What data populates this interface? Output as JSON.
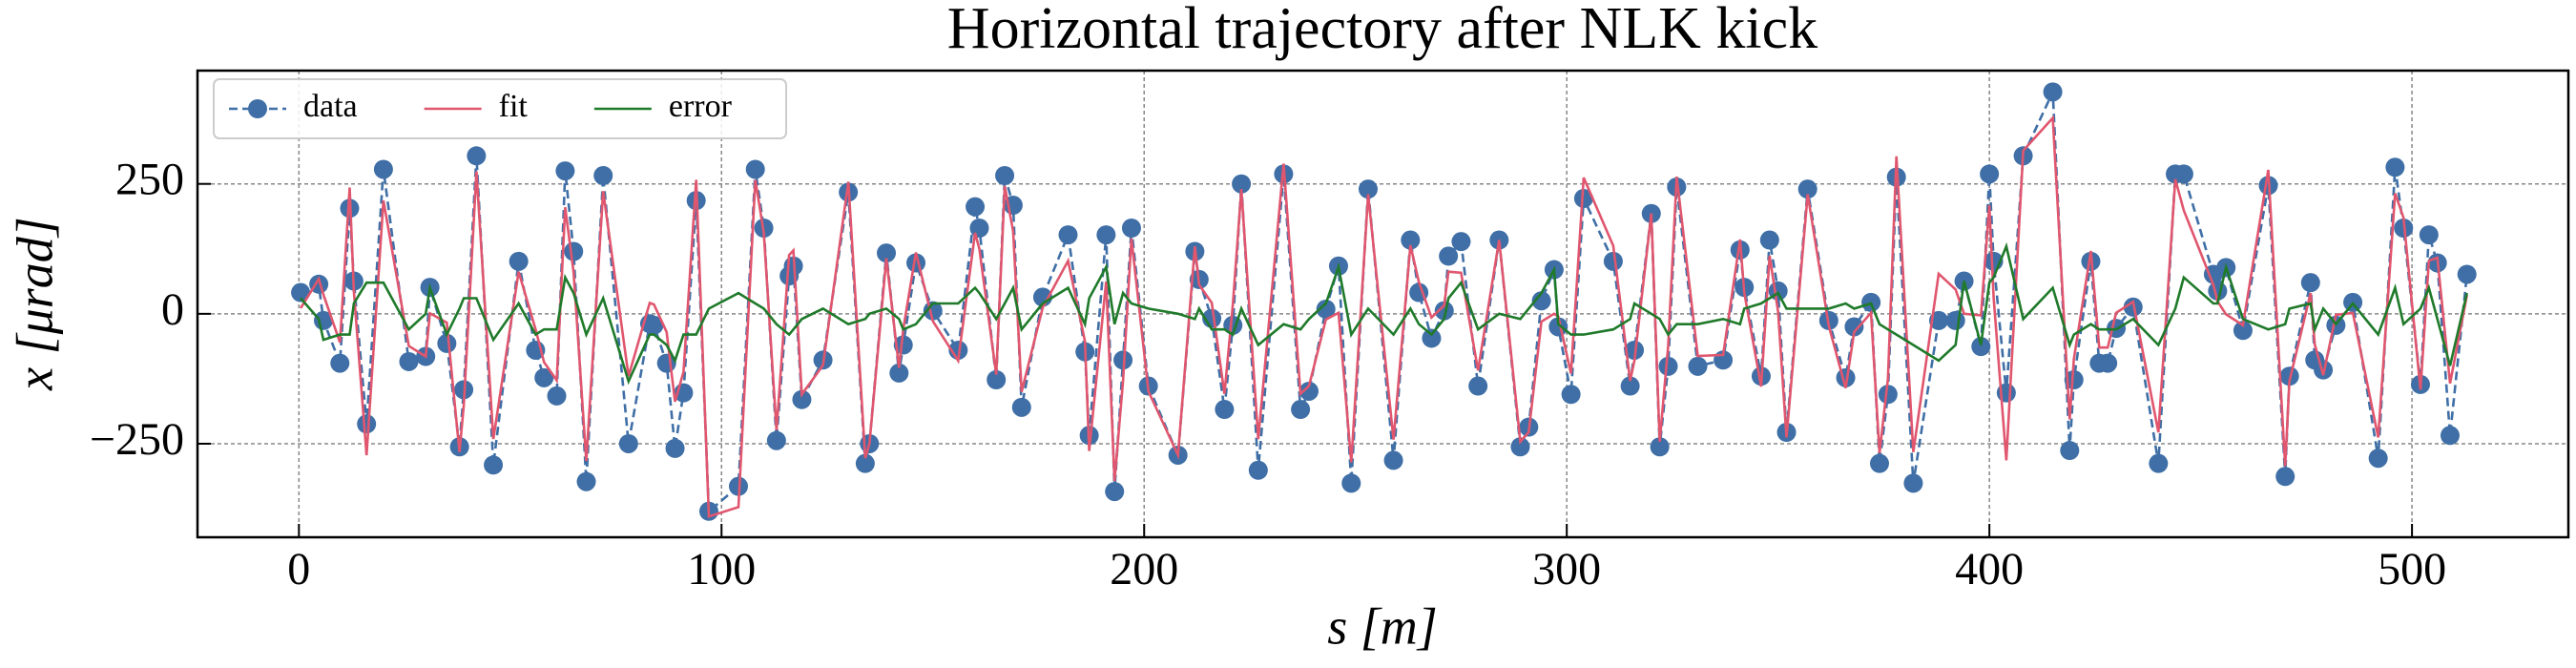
{
  "chart_data": {
    "type": "line",
    "title": "Horizontal trajectory after NLK kick",
    "xlabel": "s [m]",
    "ylabel": "x [μrad]",
    "xlim": [
      -24,
      537
    ],
    "ylim": [
      -430,
      468
    ],
    "xticks": [
      0,
      100,
      200,
      300,
      400,
      500
    ],
    "yticks": [
      {
        "value": -250,
        "label": "−250"
      },
      0,
      250
    ],
    "grid": true,
    "legend": "upper left",
    "x": [
      0.4,
      4.7,
      5.8,
      9.7,
      12,
      13,
      16,
      20,
      26,
      30,
      31,
      35,
      38,
      39,
      42,
      46,
      52,
      56,
      58,
      61,
      63,
      65,
      68,
      72,
      78,
      83,
      84,
      87,
      89,
      91,
      94,
      97,
      104,
      108,
      110,
      113,
      116,
      117,
      119,
      124,
      130,
      134,
      135,
      139,
      142,
      143,
      146,
      150,
      156,
      160,
      161,
      165,
      167,
      169,
      171,
      176,
      182,
      186,
      187,
      191,
      193,
      195,
      197,
      201,
      208,
      212,
      213,
      216,
      219,
      221,
      223,
      227,
      233,
      237,
      239,
      243,
      246,
      249,
      253,
      259,
      263,
      265,
      268,
      271,
      272,
      275,
      279,
      284,
      289,
      291,
      294,
      297,
      298,
      301,
      304,
      311,
      315,
      316,
      320,
      322,
      324,
      326,
      331,
      337,
      341,
      342,
      346,
      348,
      350,
      352,
      357,
      362,
      366,
      368,
      372,
      374,
      376,
      378,
      382,
      388,
      392,
      394,
      398,
      400,
      401,
      404,
      408,
      415,
      419,
      420,
      424,
      426,
      428,
      430,
      434,
      440,
      444,
      446,
      453,
      454,
      456,
      460,
      466,
      470,
      471,
      476,
      477,
      479,
      482,
      486,
      492,
      496,
      498,
      502,
      504,
      506,
      509,
      513
    ],
    "series": [
      {
        "name": "data",
        "color": "#3f6fa6",
        "linestyle": "dashed",
        "marker": true,
        "values": [
          41,
          57,
          -13,
          -95,
          203,
          63,
          -212,
          278,
          -92,
          -82,
          51,
          -57,
          -256,
          -146,
          304,
          -291,
          101,
          -70,
          -123,
          -158,
          275,
          120,
          -323,
          266,
          -250,
          -19,
          -22,
          -95,
          -259,
          -152,
          218,
          -380,
          -332,
          278,
          165,
          -244,
          73,
          92,
          -165,
          -89,
          234,
          -288,
          -250,
          117,
          -114,
          -60,
          98,
          6,
          -70,
          206,
          165,
          -127,
          266,
          209,
          -180,
          32,
          152,
          -73,
          -234,
          152,
          -342,
          -89,
          165,
          -139,
          -272,
          120,
          66,
          -9,
          -184,
          -22,
          250,
          -301,
          269,
          -184,
          -149,
          9,
          92,
          -326,
          240,
          -282,
          142,
          41,
          -47,
          6,
          111,
          139,
          -139,
          142,
          -256,
          -218,
          25,
          85,
          -25,
          -155,
          222,
          101,
          -139,
          -70,
          193,
          -256,
          -101,
          244,
          -101,
          -89,
          123,
          51,
          -120,
          142,
          44,
          -228,
          240,
          -13,
          -123,
          -25,
          22,
          -288,
          -155,
          263,
          -326,
          -13,
          -13,
          63,
          -63,
          269,
          101,
          -152,
          304,
          427,
          -263,
          -127,
          101,
          -95,
          -95,
          -28,
          13,
          -288,
          269,
          269,
          76,
          44,
          89,
          -32,
          247,
          -313,
          -120,
          60,
          -89,
          -108,
          -22,
          22,
          -278,
          282,
          165,
          -136,
          152,
          98,
          -234,
          76
        ]
      },
      {
        "name": "fit",
        "color": "#e0566e",
        "linestyle": "solid",
        "marker": false,
        "values": [
          11,
          67,
          37,
          -55,
          243,
          43,
          -272,
          218,
          -62,
          -82,
          1,
          -17,
          -266,
          -176,
          274,
          -241,
          81,
          -30,
          -93,
          -128,
          205,
          80,
          -283,
          236,
          -120,
          21,
          18,
          -35,
          -169,
          -112,
          258,
          -390,
          -372,
          258,
          155,
          -224,
          113,
          122,
          -155,
          -99,
          254,
          -278,
          -250,
          107,
          -104,
          -30,
          118,
          -14,
          -90,
          156,
          125,
          -117,
          246,
          159,
          -150,
          12,
          102,
          -53,
          -264,
          62,
          -322,
          -129,
          145,
          -149,
          -272,
          130,
          56,
          21,
          -154,
          18,
          240,
          -241,
          289,
          -154,
          -139,
          -11,
          2,
          -286,
          230,
          -242,
          132,
          61,
          -7,
          16,
          81,
          79,
          -109,
          142,
          -246,
          -228,
          -15,
          0,
          -5,
          -115,
          262,
          131,
          -129,
          -90,
          193,
          -246,
          -61,
          264,
          -81,
          -79,
          143,
          41,
          -140,
          112,
          4,
          -238,
          230,
          -23,
          -143,
          -35,
          2,
          -268,
          -125,
          303,
          -266,
          77,
          47,
          0,
          -3,
          209,
          31,
          -282,
          314,
          377,
          -203,
          -87,
          121,
          -65,
          -65,
          2,
          23,
          -228,
          259,
          199,
          56,
          24,
          -1,
          -22,
          277,
          -293,
          -130,
          40,
          -59,
          -118,
          -2,
          2,
          -238,
          232,
          185,
          -146,
          102,
          108,
          -134,
          36
        ]
      },
      {
        "name": "error",
        "color": "#1f7a2a",
        "linestyle": "solid",
        "marker": false,
        "values": [
          30,
          -10,
          -50,
          -40,
          -40,
          20,
          60,
          60,
          -30,
          0,
          50,
          -40,
          10,
          30,
          30,
          -50,
          20,
          -40,
          -30,
          -30,
          70,
          40,
          -40,
          30,
          -130,
          -40,
          -40,
          -60,
          -90,
          -40,
          -40,
          10,
          40,
          20,
          10,
          -20,
          -40,
          -30,
          -10,
          10,
          -20,
          -10,
          0,
          10,
          -10,
          -30,
          -20,
          20,
          20,
          50,
          40,
          -10,
          20,
          50,
          -30,
          20,
          50,
          -20,
          30,
          90,
          -20,
          40,
          20,
          10,
          0,
          -10,
          10,
          -30,
          -30,
          -40,
          10,
          -60,
          -20,
          -30,
          -10,
          20,
          90,
          -40,
          10,
          -40,
          10,
          -20,
          -40,
          -10,
          30,
          60,
          -30,
          0,
          -10,
          10,
          40,
          85,
          -20,
          -40,
          -40,
          -30,
          -10,
          20,
          0,
          -10,
          -40,
          -20,
          -20,
          -10,
          -20,
          10,
          20,
          30,
          40,
          10,
          10,
          10,
          20,
          10,
          20,
          -20,
          -30,
          -40,
          -60,
          -90,
          -60,
          63,
          -60,
          60,
          70,
          130,
          -10,
          50,
          -60,
          -40,
          -20,
          -30,
          -30,
          -30,
          -10,
          -60,
          10,
          70,
          20,
          20,
          90,
          -10,
          -30,
          -20,
          10,
          20,
          -30,
          10,
          -20,
          20,
          -40,
          50,
          -20,
          10,
          50,
          -10,
          -100,
          40
        ]
      }
    ]
  }
}
